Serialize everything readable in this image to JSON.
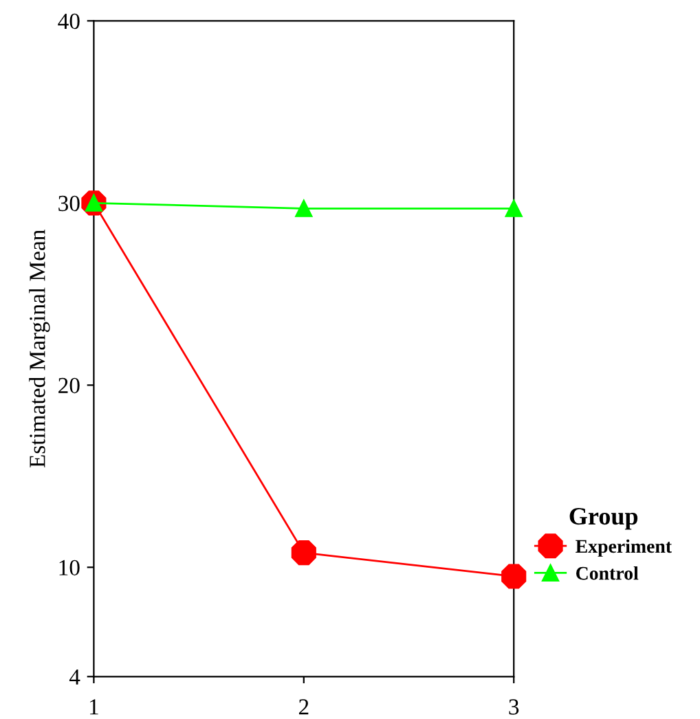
{
  "chart_data": {
    "type": "line",
    "ylabel": "Estimated Marginal Mean",
    "legend_title": "Group",
    "categories": [
      "1",
      "2",
      "3"
    ],
    "ylim": [
      4,
      40
    ],
    "yticks": [
      4,
      10,
      20,
      30,
      40
    ],
    "grid": false,
    "legend": "right",
    "line_style": "solid",
    "series": [
      {
        "name": "Experiment",
        "color": "#ff0000",
        "marker": "circle",
        "values": [
          30,
          10.8,
          9.5
        ]
      },
      {
        "name": "Control",
        "color": "#00ff00",
        "marker": "triangle",
        "values": [
          30,
          29.7,
          29.7
        ]
      }
    ]
  }
}
